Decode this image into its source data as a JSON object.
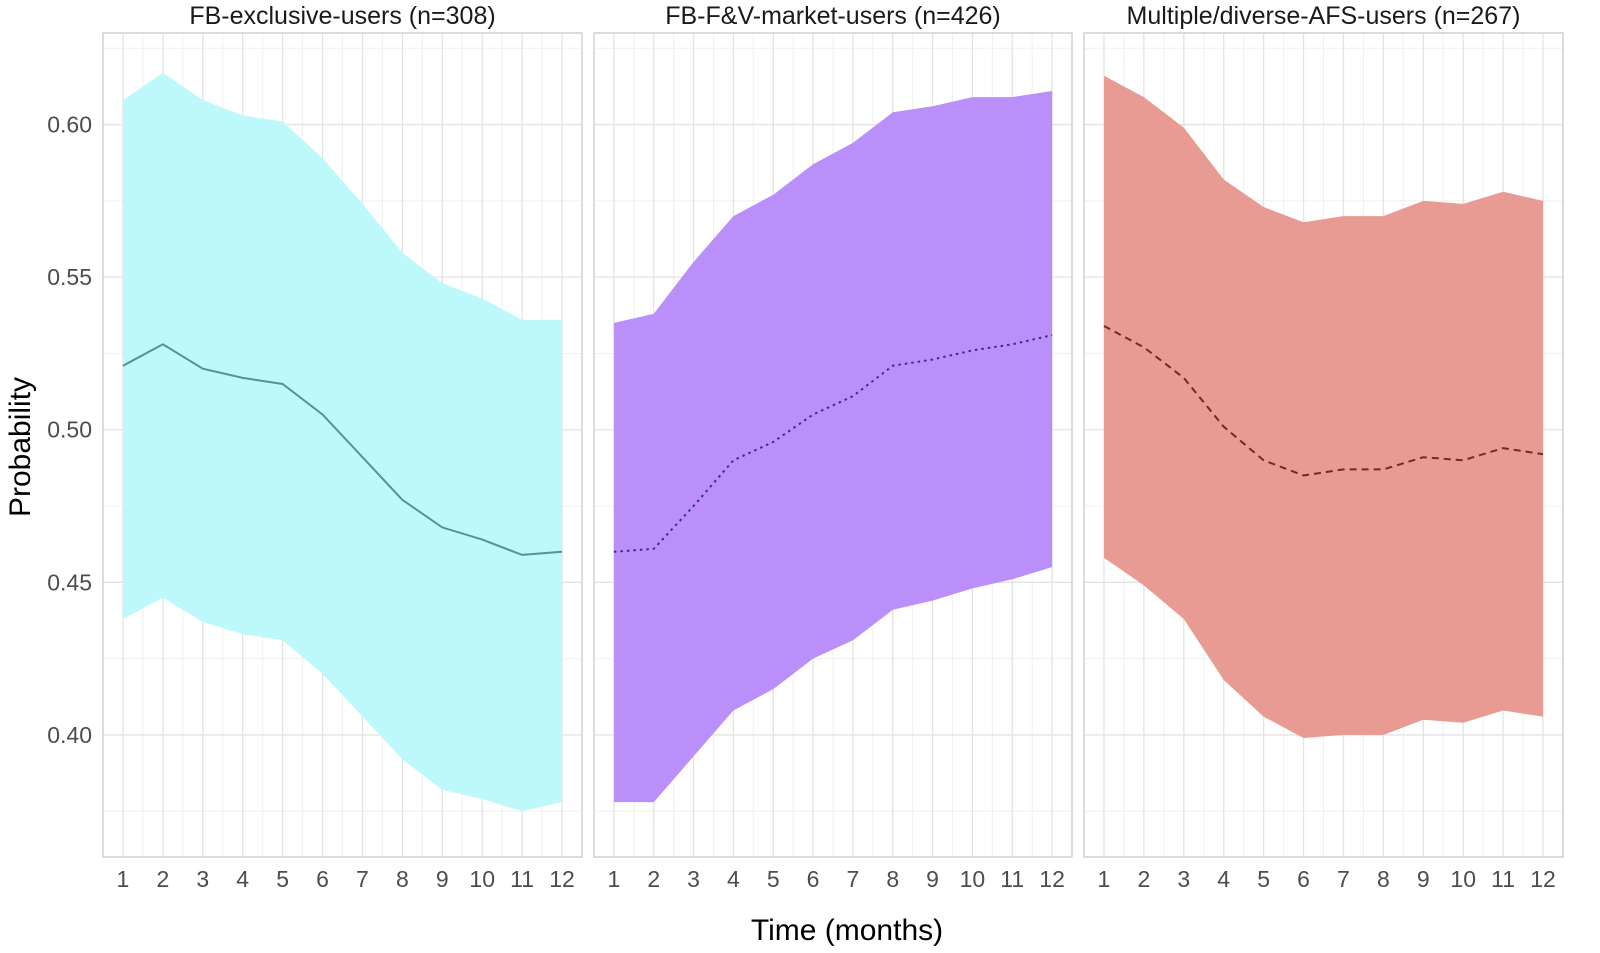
{
  "chart_data": {
    "type": "area",
    "xlabel": "Time (months)",
    "ylabel": "Probability",
    "ylim": [
      0.36,
      0.63
    ],
    "yticks": [
      0.4,
      0.45,
      0.5,
      0.55,
      0.6
    ],
    "ytick_labels": [
      "0.40",
      "0.45",
      "0.50",
      "0.55",
      "0.60"
    ],
    "xlim": [
      0.5,
      12.5
    ],
    "xticks": [
      1,
      2,
      3,
      4,
      5,
      6,
      7,
      8,
      9,
      10,
      11,
      12
    ],
    "xtick_labels": [
      "1",
      "2",
      "3",
      "4",
      "5",
      "6",
      "7",
      "8",
      "9",
      "10",
      "11",
      "12"
    ],
    "grid": true,
    "panels": [
      {
        "title": "FB-exclusive-users (n=308)",
        "fill_color": "#bdf9fb",
        "line_color": "#5e8f8f",
        "line_style": "solid",
        "x": [
          1,
          2,
          3,
          4,
          5,
          6,
          7,
          8,
          9,
          10,
          11,
          12
        ],
        "estimate": [
          0.521,
          0.528,
          0.52,
          0.517,
          0.515,
          0.505,
          0.491,
          0.477,
          0.468,
          0.464,
          0.459,
          0.46
        ],
        "upper": [
          0.608,
          0.617,
          0.608,
          0.603,
          0.601,
          0.589,
          0.574,
          0.558,
          0.548,
          0.543,
          0.536,
          0.536
        ],
        "lower": [
          0.438,
          0.445,
          0.437,
          0.433,
          0.431,
          0.42,
          0.406,
          0.392,
          0.382,
          0.379,
          0.375,
          0.378
        ]
      },
      {
        "title": "FB-F&V-market-users (n=426)",
        "fill_color": "#bb8ffa",
        "line_color": "#3b2f7a",
        "line_style": "dotted",
        "x": [
          1,
          2,
          3,
          4,
          5,
          6,
          7,
          8,
          9,
          10,
          11,
          12
        ],
        "estimate": [
          0.46,
          0.461,
          0.475,
          0.49,
          0.496,
          0.505,
          0.511,
          0.521,
          0.523,
          0.526,
          0.528,
          0.531
        ],
        "upper": [
          0.535,
          0.538,
          0.555,
          0.57,
          0.577,
          0.587,
          0.594,
          0.604,
          0.606,
          0.609,
          0.609,
          0.611
        ],
        "lower": [
          0.378,
          0.378,
          0.393,
          0.408,
          0.415,
          0.425,
          0.431,
          0.441,
          0.444,
          0.448,
          0.451,
          0.455
        ]
      },
      {
        "title": "Multiple/diverse-AFS-users (n=267)",
        "fill_color": "#e89b93",
        "line_color": "#6e2c26",
        "line_style": "dashed",
        "x": [
          1,
          2,
          3,
          4,
          5,
          6,
          7,
          8,
          9,
          10,
          11,
          12
        ],
        "estimate": [
          0.534,
          0.527,
          0.517,
          0.501,
          0.49,
          0.485,
          0.487,
          0.487,
          0.491,
          0.49,
          0.494,
          0.492
        ],
        "upper": [
          0.616,
          0.609,
          0.599,
          0.582,
          0.573,
          0.568,
          0.57,
          0.57,
          0.575,
          0.574,
          0.578,
          0.575
        ],
        "lower": [
          0.458,
          0.449,
          0.438,
          0.418,
          0.406,
          0.399,
          0.4,
          0.4,
          0.405,
          0.404,
          0.408,
          0.406
        ]
      }
    ]
  }
}
